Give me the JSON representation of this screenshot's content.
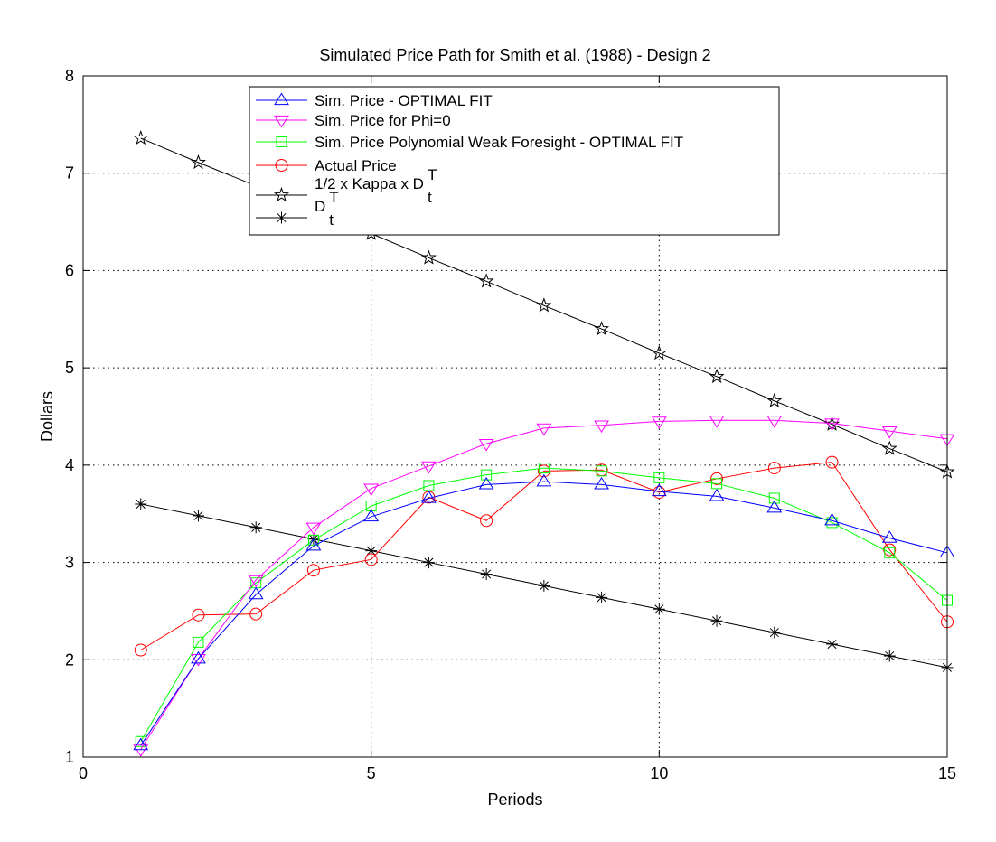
{
  "chart_data": {
    "type": "line",
    "title": "Simulated Price Path for Smith et al. (1988) - Design 2",
    "xlabel": "Periods",
    "ylabel": "Dollars",
    "xlim": [
      0,
      15
    ],
    "ylim": [
      1,
      8
    ],
    "xticks": [
      0,
      5,
      10,
      15
    ],
    "yticks": [
      1,
      2,
      3,
      4,
      5,
      6,
      7,
      8
    ],
    "grid": true,
    "legend_position": "top-center",
    "x": [
      1,
      2,
      3,
      4,
      5,
      6,
      7,
      8,
      9,
      10,
      11,
      12,
      13,
      14,
      15
    ],
    "series": [
      {
        "name": "Sim. Price - OPTIMAL FIT",
        "color": "#0000ff",
        "marker": "triangle-up",
        "values": [
          1.12,
          2.01,
          2.67,
          3.17,
          3.47,
          3.66,
          3.8,
          3.83,
          3.8,
          3.73,
          3.68,
          3.56,
          3.43,
          3.25,
          3.1
        ]
      },
      {
        "name": "Sim. Price for Phi=0",
        "color": "#ff00ff",
        "marker": "triangle-down",
        "values": [
          1.08,
          2.01,
          2.82,
          3.36,
          3.76,
          3.99,
          4.22,
          4.38,
          4.41,
          4.45,
          4.46,
          4.46,
          4.43,
          4.35,
          4.27
        ]
      },
      {
        "name": "Sim. Price Polynomial Weak Foresight - OPTIMAL FIT",
        "color": "#00ff00",
        "marker": "square",
        "values": [
          1.16,
          2.18,
          2.79,
          3.23,
          3.58,
          3.79,
          3.9,
          3.97,
          3.94,
          3.87,
          3.81,
          3.66,
          3.41,
          3.1,
          2.61
        ]
      },
      {
        "name": "Actual Price",
        "color": "#ff0000",
        "marker": "circle",
        "values": [
          2.1,
          2.46,
          2.47,
          2.92,
          3.03,
          3.67,
          3.43,
          3.94,
          3.95,
          3.72,
          3.86,
          3.97,
          4.03,
          3.13,
          2.39
        ]
      },
      {
        "name": "1/2 x Kappa x D",
        "name_super": "T",
        "name_sub": "t",
        "color": "#000000",
        "marker": "pentagram",
        "values": [
          7.36,
          7.11,
          6.87,
          6.62,
          6.38,
          6.13,
          5.89,
          5.64,
          5.4,
          5.15,
          4.91,
          4.66,
          4.42,
          4.17,
          3.93
        ]
      },
      {
        "name": "D",
        "name_super": "T",
        "name_sub": "t",
        "color": "#000000",
        "marker": "asterisk",
        "values": [
          3.6,
          3.48,
          3.36,
          3.24,
          3.12,
          3.0,
          2.88,
          2.76,
          2.64,
          2.52,
          2.4,
          2.28,
          2.16,
          2.04,
          1.92
        ]
      }
    ]
  }
}
